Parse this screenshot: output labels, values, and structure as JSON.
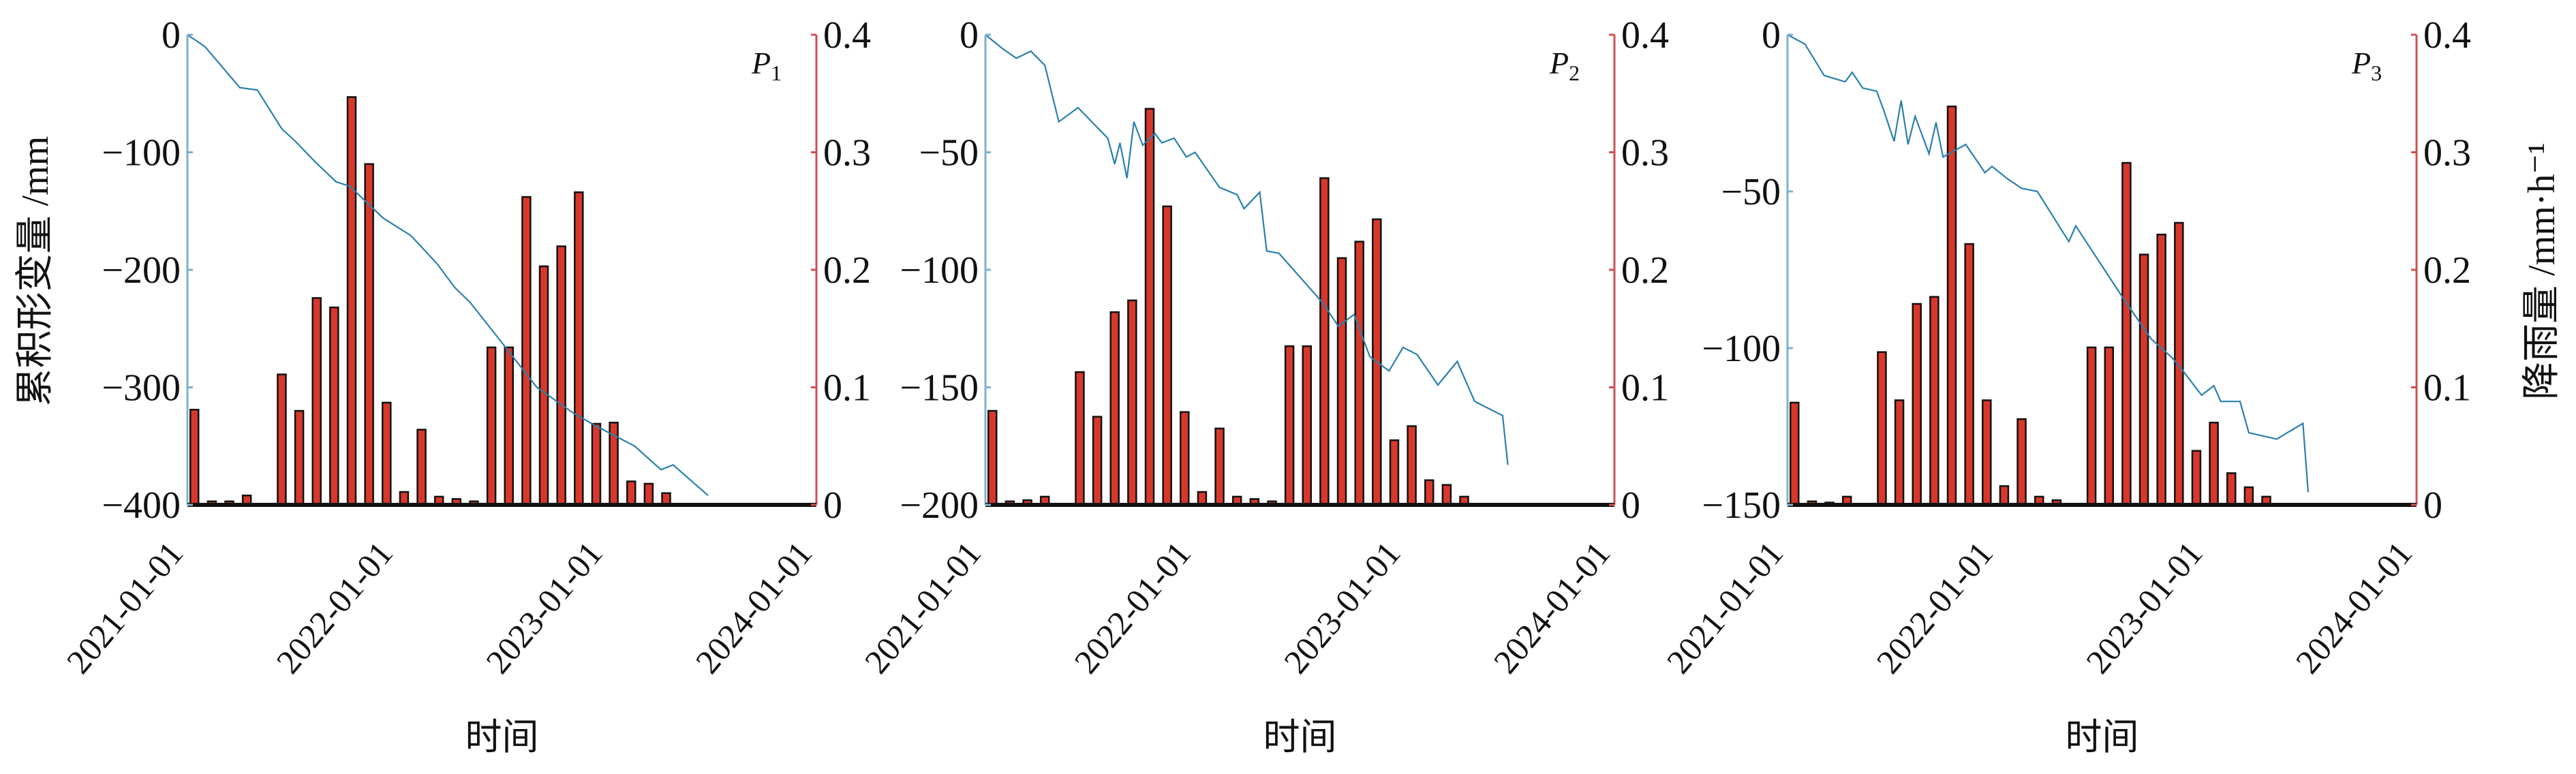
{
  "y_label_left": "累积形变量 /mm",
  "y_label_right": "降雨量 /mm·h⁻¹",
  "colors": {
    "deformation_line": "#2a7fae",
    "left_axis": "#7fb0cf",
    "right_axis": "#d05050",
    "bars": "#d8382a",
    "bar_outline": "#111111",
    "baseline": "#111111"
  },
  "chart_data": [
    {
      "type": "bar+line",
      "panel_label": "P",
      "panel_label_sub": "1",
      "xlabel": "时间",
      "x_ticks": [
        "2021-01-01",
        "2022-01-01",
        "2023-01-01",
        "2024-01-01"
      ],
      "xlim": [
        "2021-01-01",
        "2024-01-01"
      ],
      "ylim_left": [
        -400,
        0
      ],
      "yticks_left": [
        "0",
        "−100",
        "−200",
        "−300",
        "−400"
      ],
      "yticks_left_values": [
        0,
        -100,
        -200,
        -300,
        -400
      ],
      "ylim_right": [
        0,
        0.4
      ],
      "yticks_right": [
        "0.4",
        "0.3",
        "0.2",
        "0.1",
        "0"
      ],
      "yticks_right_values": [
        0.4,
        0.3,
        0.2,
        0.1,
        0
      ],
      "rainfall": {
        "months": [
          "2021-01",
          "2021-02",
          "2021-03",
          "2021-04",
          "2021-05",
          "2021-06",
          "2021-07",
          "2021-08",
          "2021-09",
          "2021-10",
          "2021-11",
          "2021-12",
          "2022-01",
          "2022-02",
          "2022-03",
          "2022-04",
          "2022-05",
          "2022-06",
          "2022-07",
          "2022-08",
          "2022-09",
          "2022-10",
          "2022-11",
          "2022-12",
          "2023-01",
          "2023-02",
          "2023-03",
          "2023-04"
        ],
        "values": [
          0.081,
          0.003,
          0.003,
          0.008,
          0.001,
          0.111,
          0.08,
          0.176,
          0.168,
          0.347,
          0.29,
          0.087,
          0.011,
          0.064,
          0.007,
          0.005,
          0.003,
          0.134,
          0.134,
          0.262,
          0.203,
          0.22,
          0.266,
          0.069,
          0.07,
          0.02,
          0.018,
          0.01
        ]
      },
      "deformation": {
        "x": [
          "2021-01-01",
          "2021-02-01",
          "2021-04-01",
          "2021-05-01",
          "2021-06-13",
          "2021-07-07",
          "2021-08-10",
          "2021-09-16",
          "2021-10-10",
          "2021-12-07",
          "2022-01-25",
          "2022-03-10",
          "2022-04-10",
          "2022-05-07",
          "2022-07-01",
          "2022-09-01",
          "2022-11-04",
          "2022-12-13",
          "2023-02-19",
          "2023-04-04",
          "2023-04-25",
          "2023-06-25"
        ],
        "y": [
          0,
          -10,
          -45,
          -47,
          -80,
          -91,
          -108,
          -125,
          -129,
          -156,
          -171,
          -195,
          -215,
          -228,
          -262,
          -300,
          -322,
          -333,
          -350,
          -370,
          -366,
          -392
        ]
      }
    },
    {
      "type": "bar+line",
      "panel_label": "P",
      "panel_label_sub": "2",
      "xlabel": "时间",
      "x_ticks": [
        "2021-01-01",
        "2022-01-01",
        "2023-01-01",
        "2024-01-01"
      ],
      "xlim": [
        "2021-01-01",
        "2024-01-01"
      ],
      "ylim_left": [
        -200,
        0
      ],
      "yticks_left": [
        "0",
        "−50",
        "−100",
        "−150",
        "−200"
      ],
      "yticks_left_values": [
        0,
        -50,
        -100,
        -150,
        -200
      ],
      "ylim_right": [
        0,
        0.4
      ],
      "yticks_right": [
        "0.4",
        "0.3",
        "0.2",
        "0.1",
        "0"
      ],
      "yticks_right_values": [
        0.4,
        0.3,
        0.2,
        0.1,
        0
      ],
      "rainfall": {
        "months": [
          "2021-01",
          "2021-02",
          "2021-03",
          "2021-04",
          "2021-05",
          "2021-06",
          "2021-07",
          "2021-08",
          "2021-09",
          "2021-10",
          "2021-11",
          "2021-12",
          "2022-01",
          "2022-02",
          "2022-03",
          "2022-04",
          "2022-05",
          "2022-06",
          "2022-07",
          "2022-08",
          "2022-09",
          "2022-10",
          "2022-11",
          "2022-12",
          "2023-01",
          "2023-02",
          "2023-03",
          "2023-04"
        ],
        "values": [
          0.08,
          0.003,
          0.004,
          0.007,
          0.001,
          0.113,
          0.075,
          0.164,
          0.174,
          0.337,
          0.254,
          0.079,
          0.011,
          0.065,
          0.007,
          0.005,
          0.003,
          0.135,
          0.135,
          0.278,
          0.21,
          0.224,
          0.243,
          0.055,
          0.067,
          0.021,
          0.017,
          0.007
        ]
      },
      "deformation": {
        "x": [
          "2021-01-01",
          "2021-02-01",
          "2021-02-24",
          "2021-03-19",
          "2021-04-13",
          "2021-05-07",
          "2021-06-10",
          "2021-08-01",
          "2021-08-13",
          "2021-08-22",
          "2021-09-04",
          "2021-09-16",
          "2021-10-01",
          "2021-10-22",
          "2021-11-04",
          "2021-11-25",
          "2021-12-16",
          "2022-01-01",
          "2022-02-13",
          "2022-03-13",
          "2022-03-25",
          "2022-04-22",
          "2022-05-04",
          "2022-05-25",
          "2022-08-10",
          "2022-09-07",
          "2022-10-04",
          "2022-11-01",
          "2022-12-04",
          "2022-12-28",
          "2023-01-22",
          "2023-02-28",
          "2023-04-01",
          "2023-05-01",
          "2023-06-19",
          "2023-06-28"
        ],
        "y": [
          0,
          -6,
          -10,
          -7,
          -13,
          -37,
          -31,
          -44,
          -55,
          -46,
          -61,
          -37,
          -47,
          -42,
          -46,
          -44,
          -52,
          -50,
          -65,
          -68,
          -74,
          -67,
          -92,
          -93,
          -114,
          -124,
          -119,
          -137,
          -143,
          -133,
          -136,
          -149,
          -139,
          -156,
          -162,
          -183
        ]
      }
    },
    {
      "type": "bar+line",
      "panel_label": "P",
      "panel_label_sub": "3",
      "xlabel": "时间",
      "x_ticks": [
        "2021-01-01",
        "2022-01-01",
        "2023-01-01",
        "2024-01-01"
      ],
      "xlim": [
        "2021-01-01",
        "2024-01-01"
      ],
      "ylim_left": [
        -150,
        0
      ],
      "yticks_left": [
        "0",
        "−50",
        "−100",
        "−150"
      ],
      "yticks_left_values": [
        0,
        -50,
        -100,
        -150
      ],
      "ylim_right": [
        0,
        0.4
      ],
      "yticks_right": [
        "0.4",
        "0.3",
        "0.2",
        "0.1",
        "0"
      ],
      "yticks_right_values": [
        0.4,
        0.3,
        0.2,
        0.1,
        0
      ],
      "rainfall": {
        "months": [
          "2021-01",
          "2021-02",
          "2021-03",
          "2021-04",
          "2021-05",
          "2021-06",
          "2021-07",
          "2021-08",
          "2021-09",
          "2021-10",
          "2021-11",
          "2021-12",
          "2022-01",
          "2022-02",
          "2022-03",
          "2022-04",
          "2022-05",
          "2022-06",
          "2022-07",
          "2022-08",
          "2022-09",
          "2022-10",
          "2022-11",
          "2022-12",
          "2023-01",
          "2023-02",
          "2023-03",
          "2023-04"
        ],
        "values": [
          0.087,
          0.003,
          0.002,
          0.007,
          0.001,
          0.13,
          0.089,
          0.171,
          0.177,
          0.339,
          0.222,
          0.089,
          0.016,
          0.073,
          0.007,
          0.004,
          0.001,
          0.134,
          0.134,
          0.291,
          0.213,
          0.23,
          0.24,
          0.046,
          0.07,
          0.027,
          0.015,
          0.007
        ]
      },
      "deformation": {
        "x": [
          "2021-01-01",
          "2021-02-01",
          "2021-03-04",
          "2021-04-10",
          "2021-04-22",
          "2021-05-10",
          "2021-06-04",
          "2021-06-16",
          "2021-07-04",
          "2021-07-16",
          "2021-07-28",
          "2021-08-10",
          "2021-09-04",
          "2021-09-16",
          "2021-09-28",
          "2021-11-07",
          "2021-12-10",
          "2021-12-22",
          "2022-01-19",
          "2022-02-13",
          "2022-03-10",
          "2022-05-04",
          "2022-05-16",
          "2022-08-07",
          "2022-09-25",
          "2022-11-01",
          "2022-11-19",
          "2022-12-22",
          "2023-01-13",
          "2023-01-25",
          "2023-02-28",
          "2023-03-13",
          "2023-05-01",
          "2023-06-16",
          "2023-06-25"
        ],
        "y": [
          0,
          -3,
          -13,
          -15,
          -12,
          -17,
          -18,
          -24,
          -34,
          -21,
          -35,
          -26,
          -38,
          -28,
          -39,
          -35,
          -44,
          -42,
          -46,
          -49,
          -50,
          -66,
          -61,
          -84,
          -97,
          -103,
          -107,
          -115,
          -112,
          -117,
          -117,
          -127,
          -129,
          -124,
          -146
        ]
      }
    }
  ]
}
